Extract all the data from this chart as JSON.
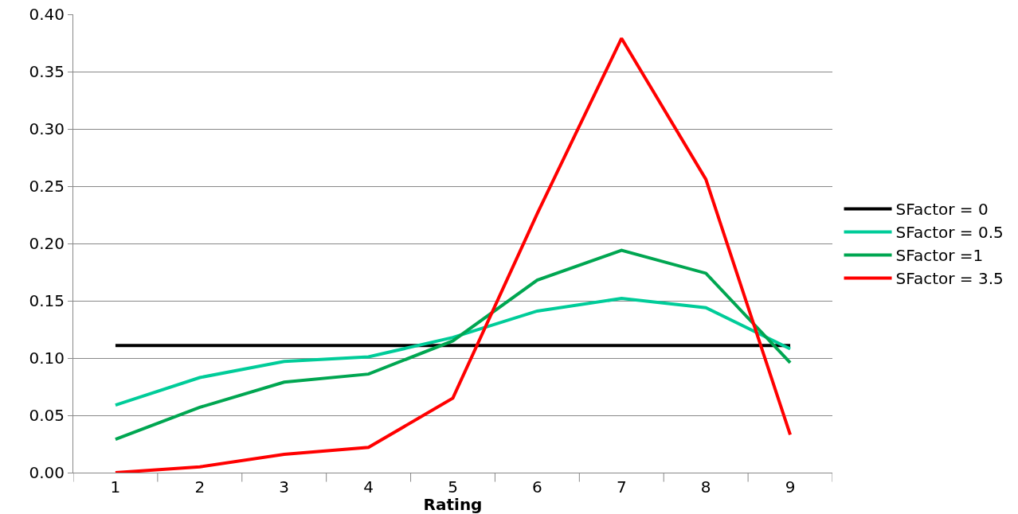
{
  "chart_data": {
    "type": "line",
    "xlabel": "Rating",
    "categories": [
      "1",
      "2",
      "3",
      "4",
      "5",
      "6",
      "7",
      "8",
      "9"
    ],
    "series": [
      {
        "name": "SFactor = 0",
        "color": "#000000",
        "values": [
          0.111,
          0.111,
          0.111,
          0.111,
          0.111,
          0.111,
          0.111,
          0.111,
          0.111
        ]
      },
      {
        "name": "SFactor = 0.5",
        "color": "#00cc99",
        "values": [
          0.059,
          0.083,
          0.097,
          0.101,
          0.118,
          0.141,
          0.152,
          0.144,
          0.108
        ]
      },
      {
        "name": "SFactor =1",
        "color": "#00a651",
        "values": [
          0.029,
          0.057,
          0.079,
          0.086,
          0.115,
          0.168,
          0.194,
          0.174,
          0.096
        ]
      },
      {
        "name": "SFactor = 3.5",
        "color": "#ff0000",
        "values": [
          0.0,
          0.005,
          0.016,
          0.022,
          0.065,
          0.226,
          0.379,
          0.256,
          0.033
        ]
      }
    ],
    "ylim": [
      0,
      0.4
    ],
    "yticks": [
      {
        "value": 0,
        "label": "0.00"
      },
      {
        "value": 0.05,
        "label": "0.05"
      },
      {
        "value": 0.1,
        "label": "0.10"
      },
      {
        "value": 0.15,
        "label": "0.15"
      },
      {
        "value": 0.2,
        "label": "0.20"
      },
      {
        "value": 0.25,
        "label": "0.25"
      },
      {
        "value": 0.3,
        "label": "0.30"
      },
      {
        "value": 0.35,
        "label": "0.35"
      },
      {
        "value": 0.4,
        "label": "0.40"
      }
    ],
    "grid": "y",
    "legend": "right",
    "marker": "none",
    "line_style": "solid"
  }
}
